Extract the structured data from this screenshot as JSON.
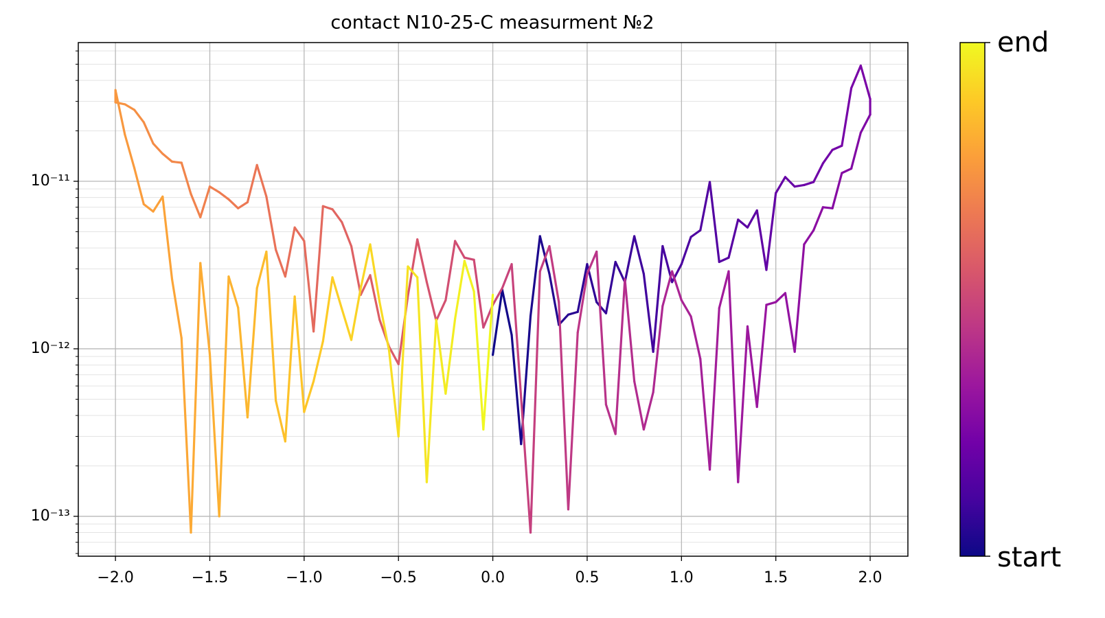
{
  "chart_data": {
    "type": "line",
    "title": "contact N10-25-C measurment №2",
    "x": [
      0,
      0.05,
      0.1,
      0.15,
      0.2,
      0.25,
      0.3,
      0.35,
      0.4,
      0.45,
      0.5,
      0.55,
      0.6,
      0.65,
      0.7,
      0.75,
      0.8,
      0.85,
      0.9,
      0.95,
      1,
      1.05,
      1.1,
      1.15,
      1.2,
      1.25,
      1.3,
      1.35,
      1.4,
      1.45,
      1.5,
      1.55,
      1.6,
      1.65,
      1.7,
      1.75,
      1.8,
      1.85,
      1.9,
      1.95,
      2,
      2,
      1.95,
      1.9,
      1.85,
      1.8,
      1.75,
      1.7,
      1.65,
      1.6,
      1.55,
      1.5,
      1.45,
      1.4,
      1.35,
      1.3,
      1.25,
      1.2,
      1.15,
      1.1,
      1.05,
      1,
      0.95,
      0.9,
      0.85,
      0.8,
      0.75,
      0.7,
      0.65,
      0.6,
      0.55,
      0.5,
      0.45,
      0.4,
      0.35,
      0.3,
      0.25,
      0.2,
      0.15,
      0.1,
      0.05,
      0,
      -0.05,
      -0.1,
      -0.15,
      -0.2,
      -0.25,
      -0.3,
      -0.35,
      -0.4,
      -0.45,
      -0.5,
      -0.55,
      -0.6,
      -0.65,
      -0.7,
      -0.75,
      -0.8,
      -0.85,
      -0.9,
      -0.95,
      -1,
      -1.05,
      -1.1,
      -1.15,
      -1.2,
      -1.25,
      -1.3,
      -1.35,
      -1.4,
      -1.45,
      -1.5,
      -1.55,
      -1.6,
      -1.65,
      -1.7,
      -1.75,
      -1.8,
      -1.85,
      -1.9,
      -1.95,
      -2,
      -2,
      -1.95,
      -1.9,
      -1.85,
      -1.8,
      -1.75,
      -1.7,
      -1.65,
      -1.6,
      -1.55,
      -1.5,
      -1.45,
      -1.4,
      -1.35,
      -1.3,
      -1.25,
      -1.2,
      -1.15,
      -1.1,
      -1.05,
      -1,
      -0.95,
      -0.9,
      -0.85,
      -0.8,
      -0.75,
      -0.7,
      -0.65,
      -0.6,
      -0.55,
      -0.5,
      -0.45,
      -0.4,
      -0.35,
      -0.3,
      -0.25,
      -0.2,
      -0.15,
      -0.1,
      -0.05,
      0
    ],
    "values": [
      9.2e-13,
      2.25e-12,
      1.21e-12,
      2.7e-13,
      1.57e-12,
      4.7e-12,
      2.8e-12,
      1.39e-12,
      1.6e-12,
      1.66e-12,
      3.2e-12,
      1.9e-12,
      1.63e-12,
      3.3e-12,
      2.5e-12,
      4.7e-12,
      2.8e-12,
      9.6e-13,
      4.1e-12,
      2.5e-12,
      3.2e-12,
      4.65e-12,
      5.1e-12,
      9.9e-12,
      3.3e-12,
      3.5e-12,
      5.9e-12,
      5.3e-12,
      6.7e-12,
      2.96e-12,
      8.5e-12,
      1.06e-11,
      9.3e-12,
      9.5e-12,
      9.9e-12,
      1.28e-11,
      1.54e-11,
      1.63e-11,
      3.6e-11,
      4.9e-11,
      3.1e-11,
      2.5e-11,
      1.95e-11,
      1.19e-11,
      1.12e-11,
      6.9e-12,
      7e-12,
      5.1e-12,
      4.2e-12,
      9.6e-13,
      2.15e-12,
      1.9e-12,
      1.83e-12,
      4.5e-13,
      1.36e-12,
      1.6e-13,
      2.9e-12,
      1.75e-12,
      1.9e-13,
      8.7e-13,
      1.56e-12,
      1.95e-12,
      2.9e-12,
      1.8e-12,
      5.5e-13,
      3.3e-13,
      6.4e-13,
      2.6e-12,
      3.1e-13,
      4.65e-13,
      3.8e-12,
      2.8e-12,
      1.25e-12,
      1.1e-13,
      1.9e-12,
      4.1e-12,
      2.9e-12,
      8e-14,
      5.1e-13,
      3.2e-12,
      2.3e-12,
      1.83e-12,
      1.34e-12,
      3.4e-12,
      3.5e-12,
      4.4e-12,
      1.95e-12,
      1.47e-12,
      2.5e-12,
      4.5e-12,
      2.07e-12,
      8.1e-13,
      1.03e-12,
      1.49e-12,
      2.75e-12,
      2.1e-12,
      4.1e-12,
      5.7e-12,
      6.8e-12,
      7.1e-12,
      1.27e-12,
      4.4e-12,
      5.3e-12,
      2.7e-12,
      3.9e-12,
      8.1e-12,
      1.25e-11,
      7.5e-12,
      6.9e-12,
      7.8e-12,
      8.6e-12,
      9.3e-12,
      6.1e-12,
      8.4e-12,
      1.29e-11,
      1.31e-11,
      1.46e-11,
      1.68e-11,
      2.25e-11,
      2.67e-11,
      2.88e-11,
      2.96e-11,
      3.5e-11,
      1.9e-11,
      1.2e-11,
      7.3e-12,
      6.6e-12,
      8.1e-12,
      2.6e-12,
      1.16e-12,
      8e-14,
      3.25e-12,
      9.3e-13,
      1e-13,
      2.7e-12,
      1.76e-12,
      3.9e-13,
      2.3e-12,
      3.8e-12,
      4.9e-13,
      2.8e-13,
      2.05e-12,
      4.2e-13,
      6.4e-13,
      1.11e-12,
      2.67e-12,
      1.73e-12,
      1.13e-12,
      2.3e-12,
      4.2e-12,
      1.9e-12,
      9.8e-13,
      3e-13,
      3.1e-12,
      2.67e-12,
      1.6e-13,
      1.49e-12,
      5.4e-13,
      1.51e-12,
      3.35e-12,
      2.2e-12,
      3.3e-13,
      2.1e-12
    ],
    "xlim": [
      -2.197,
      2.2
    ],
    "ylim": [
      5.78e-14,
      6.73e-11
    ],
    "log_y": true,
    "grid": true,
    "xticks": [
      {
        "value": -2,
        "label": "−2.0"
      },
      {
        "value": -1.5,
        "label": "−1.5"
      },
      {
        "value": -1,
        "label": "−1.0"
      },
      {
        "value": -0.5,
        "label": "−0.5"
      },
      {
        "value": 0,
        "label": "0.0"
      },
      0.5,
      {
        "value": 1,
        "label": "1.0"
      },
      1.5,
      {
        "value": 2,
        "label": "2.0"
      }
    ],
    "yticks": [
      {
        "value": 1e-13,
        "label": "10⁻¹³"
      },
      {
        "value": 1e-12,
        "label": "10⁻¹²"
      },
      {
        "value": 1e-11,
        "label": "10⁻¹¹"
      }
    ],
    "yminorticks": [
      6e-14,
      7e-14,
      8e-14,
      9e-14,
      2e-13,
      3e-13,
      4e-13,
      5e-13,
      6e-13,
      7e-13,
      8e-13,
      9e-13,
      2e-12,
      3e-12,
      4e-12,
      5e-12,
      6e-12,
      7e-12,
      8e-12,
      9e-12,
      2e-11,
      3e-11,
      4e-11,
      5e-11,
      6e-11
    ],
    "colormap": [
      "#0d0887",
      "#46039f",
      "#7201a8",
      "#9c179e",
      "#bd3786",
      "#d8576b",
      "#ed7953",
      "#fb9f3a",
      "#fdca26",
      "#f0f921"
    ],
    "colorbar": {
      "start_label": "start",
      "end_label": "end"
    }
  }
}
